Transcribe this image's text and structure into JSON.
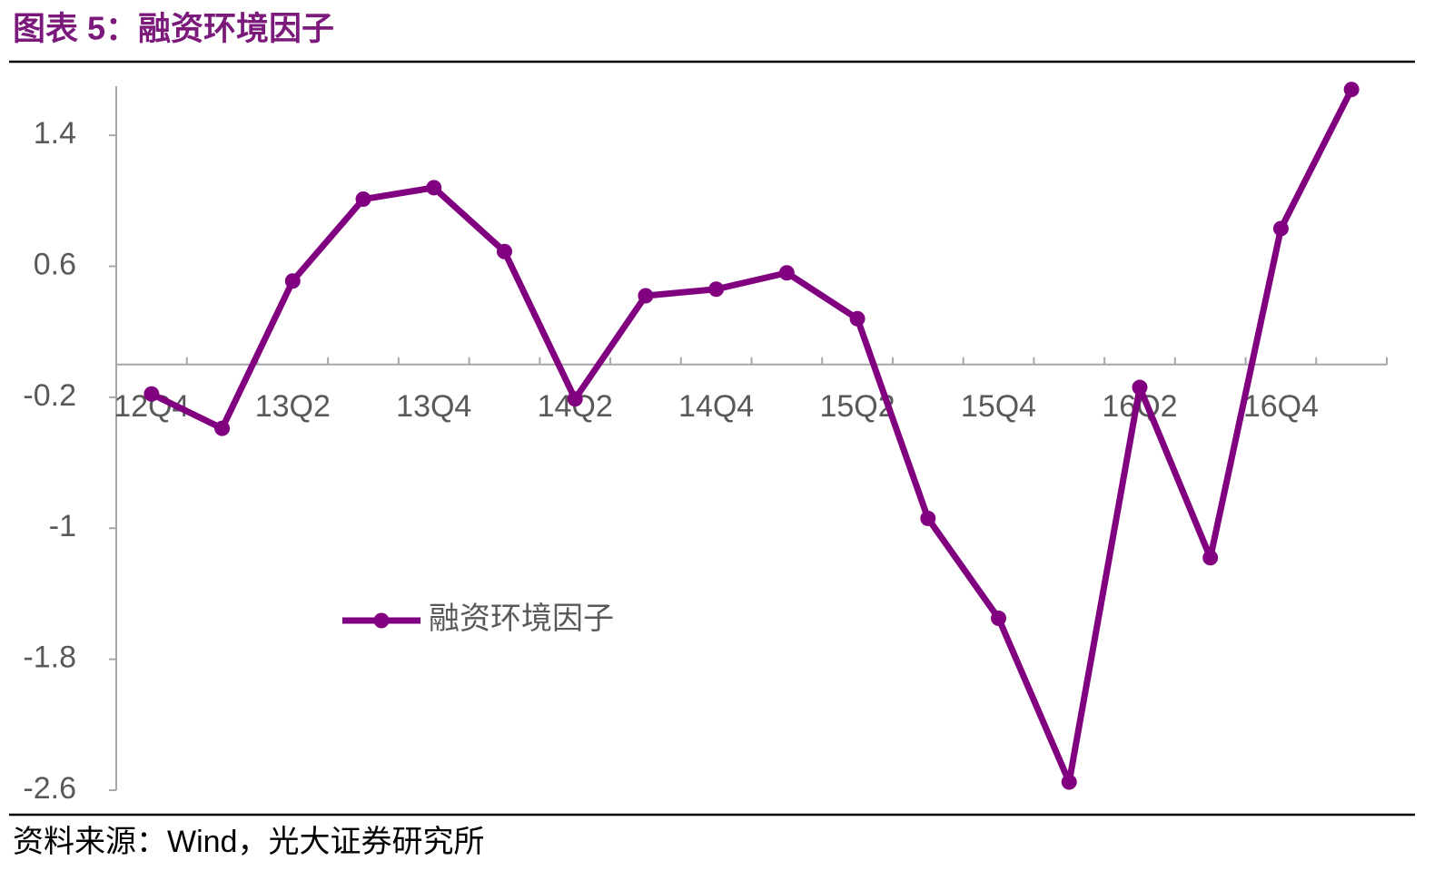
{
  "chart_data": {
    "type": "line",
    "title": "图表 5：融资环境因子",
    "source": "资料来源：Wind，光大证券研究所",
    "categories": [
      "12Q4",
      null,
      "13Q2",
      null,
      "13Q4",
      null,
      "14Q2",
      null,
      "14Q4",
      null,
      "15Q2",
      null,
      "15Q4",
      null,
      "16Q2",
      null,
      "16Q4",
      null
    ],
    "series": [
      {
        "name": "融资环境因子",
        "color": "#800080",
        "values": [
          -0.18,
          -0.39,
          0.51,
          1.01,
          1.08,
          0.69,
          -0.21,
          0.42,
          0.46,
          0.56,
          0.28,
          -0.94,
          -1.55,
          -2.55,
          -0.14,
          -1.18,
          0.83,
          1.68
        ]
      }
    ],
    "ylim": [
      -2.6,
      1.7
    ],
    "yticks": [
      1.4,
      0.6,
      -0.2,
      -1.0,
      -1.8,
      -2.6
    ],
    "grid": false
  }
}
